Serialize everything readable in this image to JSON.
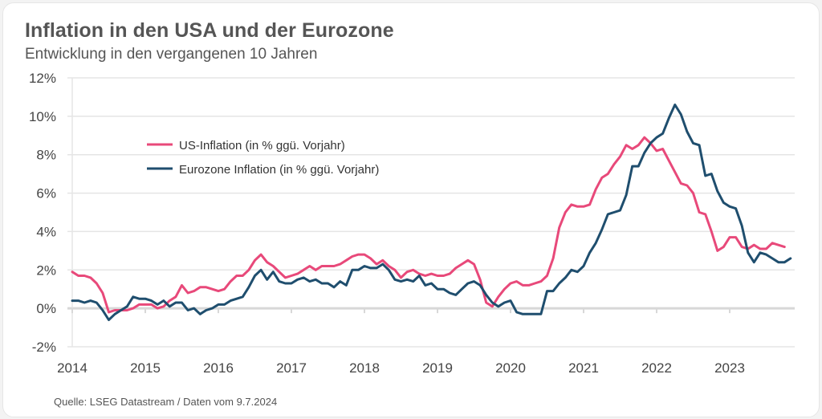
{
  "title": "Inflation in den USA und der Eurozone",
  "subtitle": "Entwicklung in den vergangenen 10 Jahren",
  "source": "Quelle: LSEG Datastream / Daten vom 9.7.2024",
  "colors": {
    "us": "#e8497a",
    "ez": "#1f4e6e",
    "grid": "#e5e5e5",
    "axis": "#d8d8d8"
  },
  "chart_data": {
    "type": "line",
    "title": "Inflation in den USA und der Eurozone",
    "subtitle": "Entwicklung in den vergangenen 10 Jahren",
    "xlabel": "",
    "ylabel": "",
    "ylim": [
      -2,
      12
    ],
    "xlim": [
      2014,
      2024
    ],
    "grid": true,
    "legend_position": "top-left",
    "y_ticks": [
      "-2%",
      "0%",
      "2%",
      "4%",
      "6%",
      "8%",
      "10%",
      "12%"
    ],
    "y_tick_values": [
      -2,
      0,
      2,
      4,
      6,
      8,
      10,
      12
    ],
    "x_ticks": [
      "2014",
      "2015",
      "2016",
      "2017",
      "2018",
      "2019",
      "2020",
      "2021",
      "2022",
      "2023"
    ],
    "x_start": "2014-01",
    "frequency": "monthly",
    "series": [
      {
        "name": "US-Inflation (in % ggü. Vorjahr)",
        "key": "us",
        "values": [
          1.9,
          1.7,
          1.7,
          1.6,
          1.3,
          0.8,
          -0.2,
          -0.1,
          -0.1,
          -0.1,
          0.0,
          0.2,
          0.2,
          0.2,
          0.0,
          0.1,
          0.4,
          0.6,
          1.2,
          0.8,
          0.9,
          1.1,
          1.1,
          1.0,
          0.9,
          1.0,
          1.4,
          1.7,
          1.7,
          2.0,
          2.5,
          2.8,
          2.4,
          2.2,
          1.9,
          1.6,
          1.7,
          1.8,
          2.0,
          2.2,
          2.0,
          2.2,
          2.2,
          2.2,
          2.3,
          2.5,
          2.7,
          2.8,
          2.8,
          2.6,
          2.3,
          2.5,
          2.2,
          2.0,
          1.6,
          1.9,
          2.0,
          1.8,
          1.7,
          1.8,
          1.7,
          1.7,
          1.8,
          2.1,
          2.3,
          2.5,
          2.3,
          1.5,
          0.3,
          0.1,
          0.6,
          1.0,
          1.3,
          1.4,
          1.2,
          1.2,
          1.3,
          1.4,
          1.7,
          2.6,
          4.2,
          5.0,
          5.4,
          5.3,
          5.3,
          5.4,
          6.2,
          6.8,
          7.0,
          7.5,
          7.9,
          8.5,
          8.3,
          8.5,
          8.9,
          8.6,
          8.2,
          8.3,
          7.7,
          7.1,
          6.5,
          6.4,
          6.0,
          5.0,
          4.9,
          4.0,
          3.0,
          3.2,
          3.7,
          3.7,
          3.2,
          3.1,
          3.3,
          3.1,
          3.1,
          3.4,
          3.3,
          3.2
        ]
      },
      {
        "name": "Eurozone Inflation (in % ggü. Vorjahr)",
        "key": "ez",
        "values": [
          0.4,
          0.4,
          0.3,
          0.4,
          0.3,
          -0.1,
          -0.6,
          -0.3,
          -0.1,
          0.1,
          0.6,
          0.5,
          0.5,
          0.4,
          0.2,
          0.4,
          0.1,
          0.3,
          0.3,
          -0.1,
          0.0,
          -0.3,
          -0.1,
          0.0,
          0.2,
          0.2,
          0.4,
          0.5,
          0.6,
          1.1,
          1.7,
          2.0,
          1.5,
          1.9,
          1.4,
          1.3,
          1.3,
          1.5,
          1.6,
          1.4,
          1.5,
          1.3,
          1.3,
          1.1,
          1.4,
          1.2,
          2.0,
          2.0,
          2.2,
          2.1,
          2.1,
          2.3,
          2.0,
          1.5,
          1.4,
          1.5,
          1.4,
          1.7,
          1.2,
          1.3,
          1.0,
          1.0,
          0.8,
          0.7,
          1.0,
          1.3,
          1.4,
          1.2,
          0.7,
          0.3,
          0.1,
          0.3,
          0.4,
          -0.2,
          -0.3,
          -0.3,
          -0.3,
          -0.3,
          0.9,
          0.9,
          1.3,
          1.6,
          2.0,
          1.9,
          2.2,
          2.9,
          3.4,
          4.1,
          4.9,
          5.0,
          5.1,
          5.9,
          7.4,
          7.4,
          8.1,
          8.6,
          8.9,
          9.1,
          9.9,
          10.6,
          10.1,
          9.2,
          8.6,
          8.5,
          6.9,
          7.0,
          6.1,
          5.5,
          5.3,
          5.2,
          4.3,
          2.9,
          2.4,
          2.9,
          2.8,
          2.6,
          2.4,
          2.4,
          2.6
        ]
      }
    ]
  }
}
